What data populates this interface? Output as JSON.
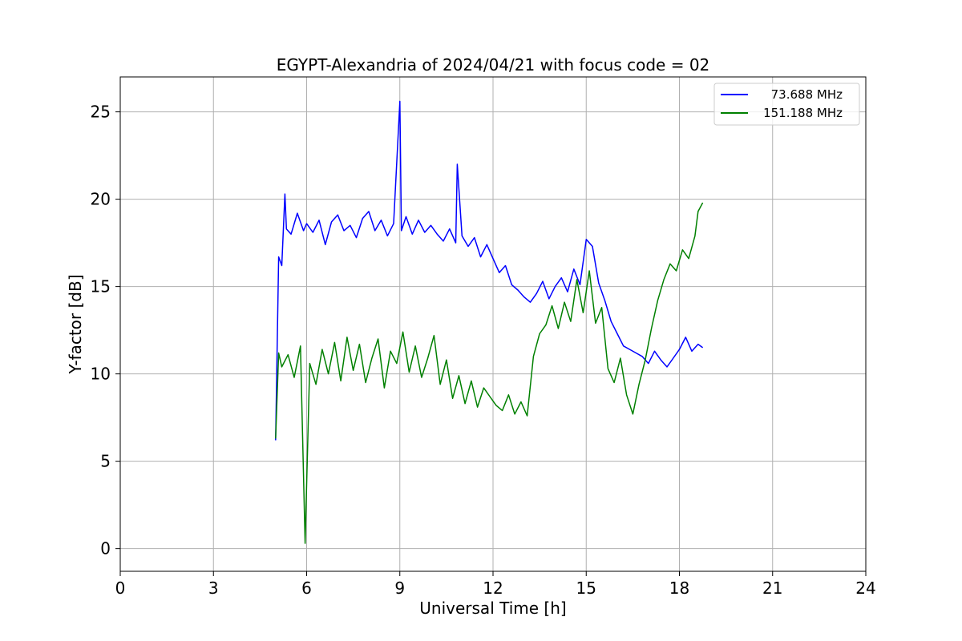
{
  "chart_data": {
    "type": "line",
    "title": "EGYPT-Alexandria of 2024/04/21 with focus code = 02",
    "xlabel": "Universal Time [h]",
    "ylabel": "Y-factor [dB]",
    "xlim": [
      0,
      24
    ],
    "ylim": [
      -1.3,
      27
    ],
    "xticks": [
      0,
      3,
      6,
      9,
      12,
      15,
      18,
      21,
      24
    ],
    "xtick_labels": [
      "0",
      "3",
      "6",
      "9",
      "12",
      "15",
      "18",
      "21",
      "24"
    ],
    "yticks": [
      0,
      5,
      10,
      15,
      20,
      25
    ],
    "ytick_labels": [
      "0",
      "5",
      "10",
      "15",
      "20",
      "25"
    ],
    "grid": true,
    "legend_position": "top-right",
    "series": [
      {
        "name": "73.688 MHz",
        "color": "#0000ff",
        "x": [
          5.0,
          5.1,
          5.2,
          5.3,
          5.35,
          5.5,
          5.7,
          5.9,
          6.0,
          6.2,
          6.4,
          6.6,
          6.8,
          7.0,
          7.2,
          7.4,
          7.6,
          7.8,
          8.0,
          8.2,
          8.4,
          8.6,
          8.8,
          9.0,
          9.05,
          9.2,
          9.4,
          9.6,
          9.8,
          10.0,
          10.2,
          10.4,
          10.6,
          10.8,
          10.85,
          11.0,
          11.2,
          11.4,
          11.6,
          11.8,
          12.0,
          12.2,
          12.4,
          12.6,
          12.8,
          13.0,
          13.2,
          13.4,
          13.6,
          13.8,
          14.0,
          14.2,
          14.4,
          14.6,
          14.8,
          15.0,
          15.2,
          15.4,
          15.6,
          15.8,
          16.0,
          16.2,
          16.4,
          16.6,
          16.8,
          17.0,
          17.2,
          17.4,
          17.6,
          17.8,
          18.0,
          18.2,
          18.4,
          18.6,
          18.75
        ],
        "y": [
          6.2,
          16.7,
          16.2,
          20.3,
          18.3,
          18.0,
          19.2,
          18.2,
          18.6,
          18.1,
          18.8,
          17.4,
          18.7,
          19.1,
          18.2,
          18.5,
          17.8,
          18.9,
          19.3,
          18.2,
          18.8,
          17.9,
          18.6,
          25.6,
          18.2,
          19.0,
          18.0,
          18.8,
          18.1,
          18.5,
          18.0,
          17.6,
          18.3,
          17.5,
          22.0,
          17.9,
          17.3,
          17.8,
          16.7,
          17.4,
          16.6,
          15.8,
          16.2,
          15.1,
          14.8,
          14.4,
          14.1,
          14.6,
          15.3,
          14.3,
          15.0,
          15.5,
          14.7,
          16.0,
          15.1,
          17.7,
          17.3,
          15.2,
          14.2,
          13.0,
          12.3,
          11.6,
          11.4,
          11.2,
          11.0,
          10.6,
          11.3,
          10.8,
          10.4,
          10.9,
          11.4,
          12.1,
          11.3,
          11.7,
          11.5
        ]
      },
      {
        "name": "151.188 MHz",
        "color": "#008000",
        "x": [
          5.0,
          5.1,
          5.2,
          5.4,
          5.6,
          5.8,
          5.95,
          6.1,
          6.3,
          6.5,
          6.7,
          6.9,
          7.1,
          7.3,
          7.5,
          7.7,
          7.9,
          8.1,
          8.3,
          8.5,
          8.7,
          8.9,
          9.1,
          9.3,
          9.5,
          9.7,
          9.9,
          10.1,
          10.3,
          10.5,
          10.7,
          10.9,
          11.1,
          11.3,
          11.5,
          11.7,
          11.9,
          12.1,
          12.3,
          12.5,
          12.7,
          12.9,
          13.1,
          13.3,
          13.5,
          13.7,
          13.9,
          14.1,
          14.3,
          14.5,
          14.7,
          14.9,
          15.1,
          15.3,
          15.5,
          15.7,
          15.9,
          16.1,
          16.3,
          16.5,
          16.7,
          16.9,
          17.1,
          17.3,
          17.5,
          17.7,
          17.9,
          18.1,
          18.3,
          18.5,
          18.6,
          18.75
        ],
        "y": [
          6.3,
          11.2,
          10.4,
          11.1,
          9.8,
          11.6,
          0.3,
          10.6,
          9.4,
          11.4,
          10.0,
          11.8,
          9.6,
          12.1,
          10.2,
          11.7,
          9.5,
          10.9,
          12.0,
          9.2,
          11.3,
          10.6,
          12.4,
          10.1,
          11.6,
          9.8,
          10.9,
          12.2,
          9.4,
          10.8,
          8.6,
          9.9,
          8.3,
          9.6,
          8.1,
          9.2,
          8.7,
          8.2,
          7.9,
          8.8,
          7.7,
          8.4,
          7.6,
          11.0,
          12.3,
          12.8,
          13.9,
          12.6,
          14.1,
          13.0,
          15.4,
          13.5,
          15.9,
          12.9,
          13.8,
          10.3,
          9.5,
          10.9,
          8.8,
          7.7,
          9.4,
          10.8,
          12.6,
          14.2,
          15.4,
          16.3,
          15.9,
          17.1,
          16.6,
          17.9,
          19.3,
          19.8
        ]
      }
    ]
  }
}
